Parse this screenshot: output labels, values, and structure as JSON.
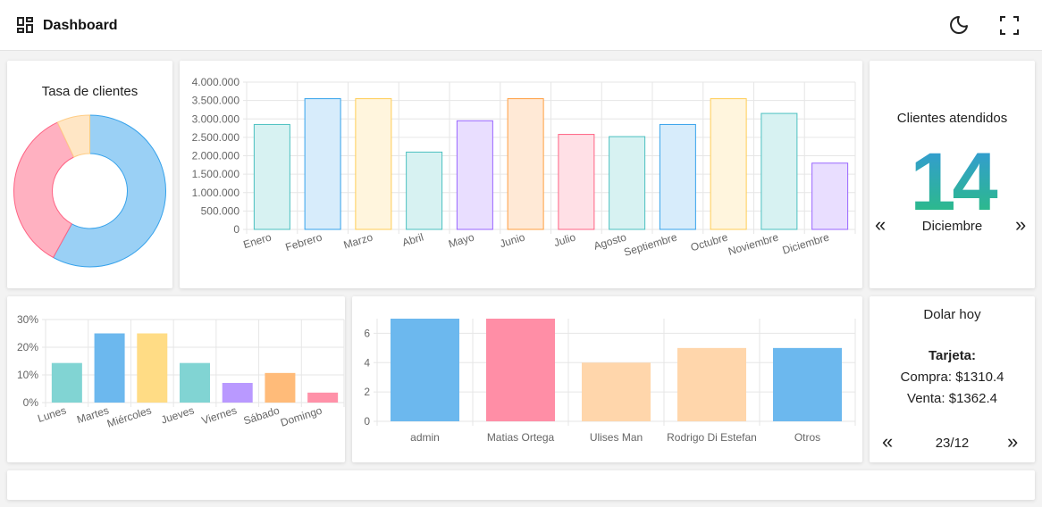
{
  "header": {
    "title": "Dashboard",
    "icons": [
      "dashboard-grid-icon",
      "moon-icon",
      "fullscreen-icon"
    ]
  },
  "donut": {
    "title": "Tasa de clientes",
    "chart_data": {
      "type": "pie",
      "values": [
        58,
        35,
        7
      ],
      "colors": [
        "#9ad0f5",
        "#ffb1c1",
        "#ffe6c5"
      ],
      "borders": [
        "#36a2eb",
        "#ff6384",
        "#ffcd86"
      ]
    }
  },
  "monthly": {
    "chart_data": {
      "type": "bar",
      "categories": [
        "Enero",
        "Febrero",
        "Marzo",
        "Abril",
        "Mayo",
        "Junio",
        "Julio",
        "Agosto",
        "Septiembre",
        "Octubre",
        "Noviembre",
        "Diciembre"
      ],
      "values": [
        2850000,
        3550000,
        3550000,
        2100000,
        2950000,
        3550000,
        2580000,
        2520000,
        2850000,
        3550000,
        3150000,
        1800000
      ],
      "ylim": [
        0,
        4000000
      ],
      "yticks": [
        "0",
        "500.000",
        "1.000.000",
        "1.500.000",
        "2.000.000",
        "2.500.000",
        "3.000.000",
        "3.500.000",
        "4.000.000"
      ],
      "fills": [
        "#d7f2f2",
        "#d7ecfb",
        "#fff5dd",
        "#d7f2f2",
        "#e9deff",
        "#ffe9d6",
        "#ffe0e6",
        "#d7f2f2",
        "#d7ecfb",
        "#fff5dd",
        "#d7f2f2",
        "#e9deff"
      ],
      "strokes": [
        "#4bc0c0",
        "#36a2eb",
        "#ffcd56",
        "#4bc0c0",
        "#9966ff",
        "#ff9f40",
        "#ff6384",
        "#4bc0c0",
        "#36a2eb",
        "#ffcd56",
        "#4bc0c0",
        "#9966ff"
      ]
    }
  },
  "clientes": {
    "title": "Clientes atendidos",
    "count": "14",
    "month": "Diciembre",
    "prev": "«",
    "next": "»"
  },
  "weekly": {
    "chart_data": {
      "type": "bar",
      "categories": [
        "Lunes",
        "Martes",
        "Miércoles",
        "Jueves",
        "Viernes",
        "Sábado",
        "Domingo"
      ],
      "values": [
        14.3,
        25,
        25,
        14.3,
        7.1,
        10.7,
        3.6
      ],
      "ylim": [
        0,
        30
      ],
      "yticks": [
        "0%",
        "10%",
        "20%",
        "30%"
      ],
      "fills": [
        "#81d4d3",
        "#6cb8ee",
        "#ffdc85",
        "#81d4d3",
        "#b999ff",
        "#ffbb79",
        "#ff91a8"
      ]
    }
  },
  "users": {
    "chart_data": {
      "type": "bar",
      "categories": [
        "admin",
        "Matias Ortega",
        "Ulises Man",
        "Rodrigo Di Estefan",
        "Otros"
      ],
      "values": [
        7,
        7,
        4,
        5,
        5
      ],
      "ylim": [
        0,
        7
      ],
      "yticks": [
        "0",
        "2",
        "4",
        "6"
      ],
      "fills": [
        "#6cb8ee",
        "#ff8ea6",
        "#ffd6ab",
        "#ffd6ab",
        "#6cb8ee"
      ]
    }
  },
  "dolar": {
    "title": "Dolar hoy",
    "label": "Tarjeta:",
    "compra": "Compra: $1310.4",
    "venta": "Venta: $1362.4",
    "date": "23/12",
    "prev": "«",
    "next": "»"
  }
}
